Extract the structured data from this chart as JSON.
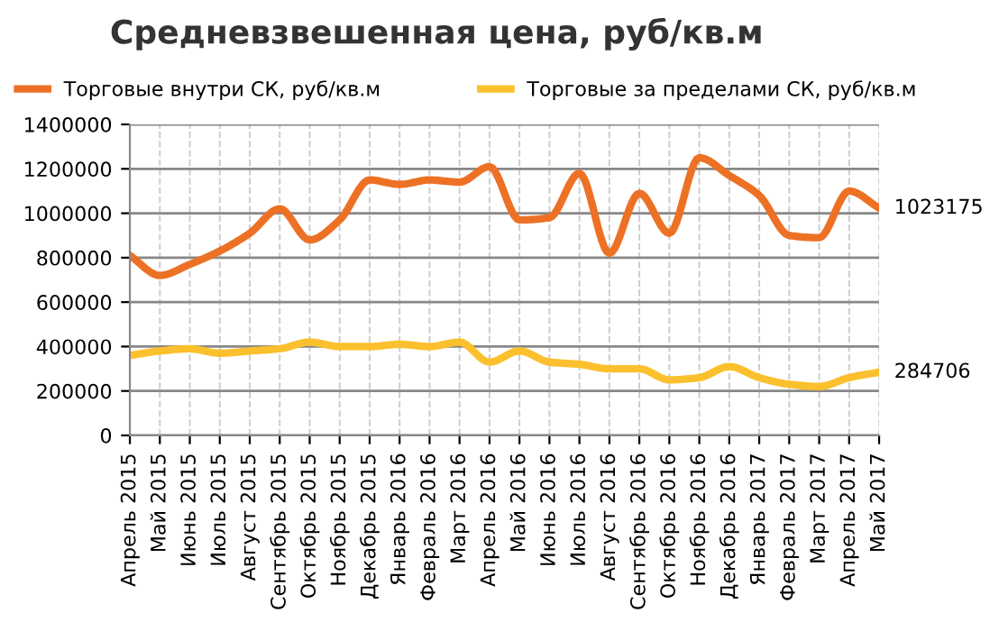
{
  "chart_data": {
    "type": "line",
    "title": "Средневзвешенная цена, руб/кв.м",
    "categories": [
      "Апрель 2015",
      "Май 2015",
      "Июнь 2015",
      "Июль 2015",
      "Август 2015",
      "Сентябрь 2015",
      "Октябрь 2015",
      "Ноябрь 2015",
      "Декабрь 2015",
      "Январь 2016",
      "Февраль 2016",
      "Март 2016",
      "Апрель 2016",
      "Май 2016",
      "Июнь 2016",
      "Июль 2016",
      "Август 2016",
      "Сентябрь 2016",
      "Октябрь 2016",
      "Ноябрь 2016",
      "Декабрь 2016",
      "Январь 2017",
      "Февраль 2017",
      "Март 2017",
      "Апрель 2017",
      "Май 2017"
    ],
    "series": [
      {
        "name": "Торговые внутри СК, руб/кв.м",
        "color": "#ed7125",
        "values": [
          810000,
          720000,
          770000,
          830000,
          910000,
          1020000,
          880000,
          970000,
          1150000,
          1130000,
          1150000,
          1140000,
          1210000,
          970000,
          980000,
          1180000,
          820000,
          1090000,
          910000,
          1250000,
          1170000,
          1080000,
          900000,
          890000,
          1100000,
          1023175
        ],
        "value_labels": [
          null,
          null,
          null,
          null,
          null,
          null,
          null,
          null,
          null,
          null,
          null,
          null,
          null,
          null,
          null,
          null,
          null,
          null,
          null,
          null,
          null,
          null,
          null,
          null,
          null,
          "1023175"
        ]
      },
      {
        "name": "Торговые за пределами СК, руб/кв.м",
        "color": "#fbc02d",
        "values": [
          360000,
          380000,
          390000,
          370000,
          380000,
          390000,
          420000,
          400000,
          400000,
          410000,
          400000,
          420000,
          330000,
          380000,
          330000,
          320000,
          300000,
          300000,
          250000,
          260000,
          310000,
          260000,
          230000,
          220000,
          260000,
          284706
        ],
        "value_labels": [
          null,
          null,
          null,
          null,
          null,
          null,
          null,
          null,
          null,
          null,
          null,
          null,
          null,
          null,
          null,
          null,
          null,
          null,
          null,
          null,
          null,
          null,
          null,
          null,
          null,
          "284706"
        ]
      }
    ],
    "ylim": [
      0,
      1400000
    ],
    "yticks": [
      0,
      200000,
      400000,
      600000,
      800000,
      1000000,
      1200000,
      1400000
    ],
    "grid": true,
    "legend": "top",
    "marker": "none",
    "line_style": "solid"
  }
}
